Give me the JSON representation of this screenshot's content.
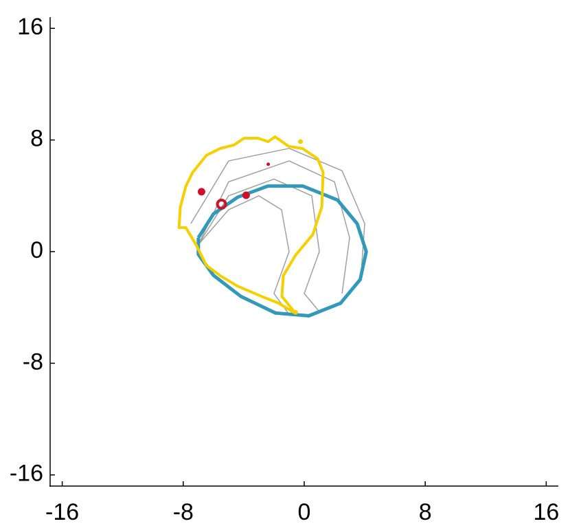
{
  "chart_data": {
    "type": "line",
    "xlim": [
      -16.8,
      16.8
    ],
    "ylim": [
      -16.8,
      16.8
    ],
    "xticks": [
      -16,
      -8,
      0,
      8,
      16
    ],
    "yticks": [
      -16,
      -8,
      0,
      8,
      16
    ],
    "series": [
      {
        "color": "#a0a0a0",
        "mode": "line",
        "x": [
          -7,
          -5,
          -3,
          -1.5,
          -1,
          -2,
          -1
        ],
        "y": [
          0.5,
          3,
          4,
          3,
          0,
          -3,
          -4.5
        ]
      },
      {
        "color": "#a0a0a0",
        "mode": "line",
        "x": [
          -7,
          -5,
          -2,
          0.5,
          1,
          0,
          1
        ],
        "y": [
          0.5,
          4,
          5.2,
          4,
          0,
          -3,
          -4.3
        ]
      },
      {
        "color": "#a0a0a0",
        "mode": "line",
        "x": [
          -7,
          -5,
          -1,
          2,
          3,
          2.5
        ],
        "y": [
          0.5,
          5,
          6.5,
          5,
          1,
          -3
        ]
      },
      {
        "color": "#a0a0a0",
        "mode": "line",
        "x": [
          -7.5,
          -5,
          -1,
          2.5,
          4,
          3.8
        ],
        "y": [
          2,
          6.5,
          7.4,
          5.8,
          2,
          -1
        ]
      },
      {
        "color": "#3399b8",
        "mode": "line",
        "width": 5,
        "x": [
          -7.0,
          -6.0,
          -4.4,
          -2.4,
          -0.1,
          2.2,
          3.5,
          4.1,
          3.7,
          2.4,
          0.3,
          -1.9,
          -4.2,
          -6.0,
          -7.0,
          -7.0
        ],
        "y": [
          1.0,
          2.7,
          3.9,
          4.7,
          4.7,
          3.7,
          2.0,
          0,
          -2.0,
          -3.7,
          -4.6,
          -4.4,
          -3.2,
          -1.7,
          -0.2,
          1.0
        ]
      },
      {
        "color": "#f5d000",
        "mode": "line",
        "width": 4,
        "x": [
          -0.57,
          -1.48,
          -1.38,
          -0.57,
          0.57,
          1.16,
          1.25,
          0.89,
          -0.11,
          -1.02,
          -1.93,
          -2.38,
          -3.06,
          -3.97,
          -4.65,
          -5.56,
          -6.47,
          -7.38,
          -7.83,
          -8.19,
          -8.28,
          -7.83,
          -7.15,
          -6.47,
          -5.56,
          -4.43,
          -2.84,
          -1.7,
          -0.57
        ],
        "y": [
          -4.43,
          -3.2,
          -1.72,
          -0.25,
          1.23,
          3.2,
          5.67,
          6.65,
          7.39,
          7.54,
          8.23,
          7.88,
          8.13,
          8.13,
          7.64,
          7.39,
          6.9,
          5.67,
          4.68,
          3.2,
          1.72,
          1.72,
          0.49,
          -0.99,
          -1.72,
          -2.46,
          -3.2,
          -3.69,
          -4.43
        ]
      },
      {
        "color": "#f5d000",
        "mode": "marker",
        "size": 3,
        "x": [
          -0.25,
          -0.57
        ],
        "y": [
          7.88,
          -4.35
        ]
      },
      {
        "color": "#d0102a",
        "mode": "marker",
        "size": 5,
        "x": [
          -6.79,
          -3.84
        ],
        "y": [
          4.29,
          4.04
        ]
      },
      {
        "color": "#d0102a",
        "mode": "marker",
        "size": 2,
        "x": [
          -2.38
        ],
        "y": [
          6.26
        ]
      },
      {
        "color": "#d0102a",
        "mode": "ring",
        "size": 6,
        "x": [
          -5.47
        ],
        "y": [
          3.4
        ]
      }
    ]
  }
}
